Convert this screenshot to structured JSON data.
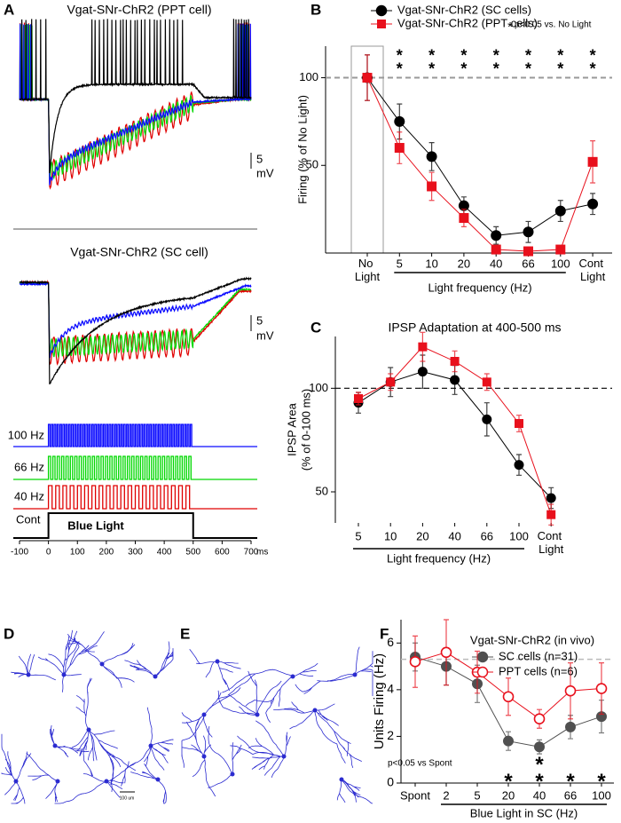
{
  "panel_a": {
    "panel_label": "A",
    "trace_titles": [
      "Vgat-SNr-ChR2 (PPT cell)",
      "Vgat-SNr-ChR2 (SC cell)"
    ],
    "scale_bar_value": "5",
    "scale_bar_unit": "mV",
    "stimuli": [
      {
        "label": "100 Hz",
        "color": "#0a0aff"
      },
      {
        "label": "66 Hz",
        "color": "#00d800"
      },
      {
        "label": "40 Hz",
        "color": "#e00000"
      },
      {
        "label": "Cont",
        "color": "#000000"
      }
    ],
    "stimulus_text": "Blue Light",
    "light_on": [
      0,
      500
    ],
    "xlim": [
      -100,
      700
    ],
    "xticks": [
      -100,
      0,
      100,
      200,
      300,
      400,
      500,
      600,
      700
    ],
    "xunit": "ms"
  },
  "panel_d": {
    "panel_label": "D",
    "scale_bar": "100 um"
  },
  "panel_e": {
    "panel_label": "E"
  },
  "chart_data": [
    {
      "type": "line",
      "panel_label": "B",
      "categories": [
        "No Light",
        "5",
        "10",
        "20",
        "40",
        "66",
        "100",
        "Cont Light"
      ],
      "ylabel": "Firing (% of No Light)",
      "xlabel": "Light frequency (Hz)",
      "ylim": [
        0,
        118
      ],
      "yticks": [
        50,
        100
      ],
      "reference_line": 100,
      "significance_marker": "*",
      "significance_note": "p<0.05 vs. No Light",
      "series": [
        {
          "name": "Vgat-SNr-ChR2 (SC cells)",
          "color": "#000000",
          "marker": "circle",
          "filled": true,
          "values": [
            100,
            75,
            55,
            27,
            10,
            12,
            24,
            28
          ],
          "errors": [
            13,
            10,
            8,
            5,
            5,
            6,
            6,
            6
          ],
          "significant": [
            false,
            true,
            true,
            true,
            true,
            true,
            true,
            true
          ]
        },
        {
          "name": "Vgat-SNr-ChR2 (PPT cells)",
          "color": "#e8101c",
          "marker": "square",
          "filled": true,
          "values": [
            100,
            60,
            38,
            20,
            2,
            1,
            2,
            52
          ],
          "errors": [
            13,
            9,
            8,
            5,
            2,
            1,
            1,
            12
          ],
          "significant": [
            false,
            true,
            true,
            true,
            true,
            true,
            true,
            true
          ]
        }
      ]
    },
    {
      "type": "line",
      "panel_label": "C",
      "title": "IPSP Adaptation at 400-500 ms",
      "categories": [
        "5",
        "10",
        "20",
        "40",
        "66",
        "100",
        "Cont Light"
      ],
      "ylabel": [
        "IPSP Area",
        "(% of 0-100 ms)"
      ],
      "xlabel": "Light frequency  (Hz)",
      "ylim": [
        35,
        125
      ],
      "yticks": [
        50,
        100
      ],
      "reference_line": 100,
      "series": [
        {
          "name": "SC cells",
          "color": "#000000",
          "marker": "circle",
          "filled": true,
          "values": [
            93,
            103,
            108,
            104,
            85,
            63,
            47
          ],
          "errors": [
            5,
            7,
            8,
            7,
            8,
            5,
            5
          ]
        },
        {
          "name": "PPT cells",
          "color": "#e8101c",
          "marker": "square",
          "filled": true,
          "values": [
            95,
            103,
            120,
            113,
            103,
            83,
            39
          ],
          "errors": [
            3,
            4,
            7,
            5,
            4,
            4,
            5
          ]
        }
      ]
    },
    {
      "type": "line",
      "panel_label": "F",
      "legend_title": "Vgat-SNr-ChR2 (in vivo)",
      "categories": [
        "Spont",
        "2",
        "5",
        "20",
        "40",
        "66",
        "100"
      ],
      "ylabel": "Units Firing (Hz)",
      "xlabel": "Blue Light in SC (Hz)",
      "ylim": [
        0,
        7
      ],
      "yticks": [
        0,
        2,
        4,
        6
      ],
      "reference_line": 5.3,
      "significance_marker": "*",
      "significance_note": "p<0.05 vs Spont",
      "series": [
        {
          "name": "SC cells (n=31)",
          "color": "#505050",
          "marker": "circle",
          "filled": true,
          "values": [
            5.4,
            5.0,
            4.25,
            1.8,
            1.55,
            2.4,
            2.85
          ],
          "errors": [
            0.6,
            0.8,
            0.8,
            0.4,
            0.3,
            0.5,
            0.7
          ],
          "significant": [
            false,
            false,
            false,
            true,
            true,
            true,
            true
          ]
        },
        {
          "name": "PPT cells (n=6)",
          "color": "#e8101c",
          "marker": "circle",
          "filled": false,
          "values": [
            5.2,
            5.6,
            4.75,
            3.7,
            2.75,
            3.95,
            4.05
          ],
          "errors": [
            1.1,
            1.4,
            0.9,
            0.8,
            0.4,
            1.2,
            1.1
          ],
          "significant": [
            false,
            false,
            false,
            false,
            true,
            false,
            false
          ]
        }
      ]
    }
  ]
}
